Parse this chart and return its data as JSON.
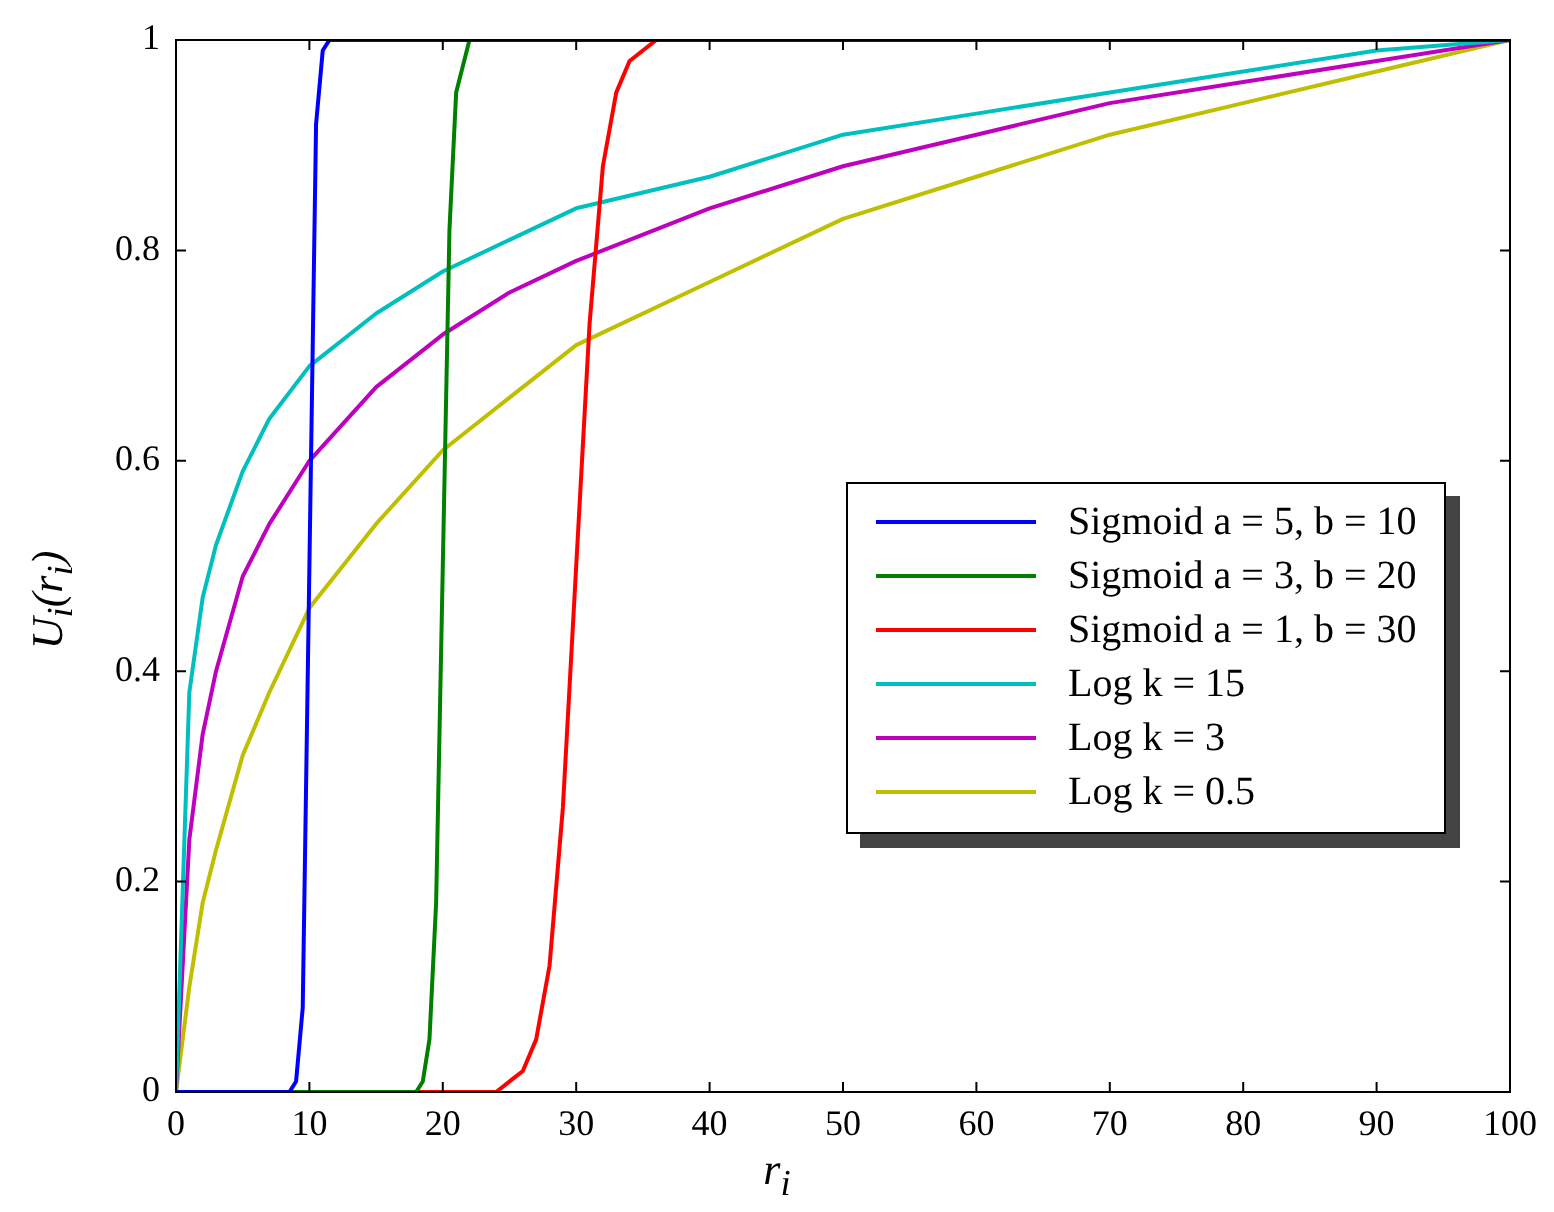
{
  "chart_data": {
    "type": "line",
    "xlabel": "r$_{i}$",
    "ylabel": "U$_{i}$(r$_{i}$)",
    "xlim": [
      0,
      100
    ],
    "ylim": [
      0,
      1
    ],
    "xticks": [
      0,
      10,
      20,
      30,
      40,
      50,
      60,
      70,
      80,
      90,
      100
    ],
    "yticks": [
      0,
      0.2,
      0.4,
      0.6,
      0.8,
      1
    ],
    "grid": false,
    "legend": "right",
    "marker": "none",
    "line_style": "solid",
    "series": [
      {
        "name": "Sigmoid a = 5, b = 10",
        "color": "#0000ff",
        "x": [
          0,
          8,
          8.5,
          9,
          9.5,
          10,
          10.5,
          11,
          11.5,
          12,
          100
        ],
        "values": [
          0,
          0,
          0,
          0.01,
          0.08,
          0.5,
          0.92,
          0.99,
          1,
          1,
          1
        ]
      },
      {
        "name": "Sigmoid a = 3, b = 20",
        "color": "#008000",
        "x": [
          0,
          17,
          18,
          18.5,
          19,
          19.5,
          20,
          20.5,
          21,
          22
        ],
        "values": [
          0,
          0,
          0,
          0.01,
          0.05,
          0.18,
          0.5,
          0.82,
          0.95,
          1
        ]
      },
      {
        "name": "Sigmoid a = 1, b = 30",
        "color": "#ff0000",
        "x": [
          0,
          24,
          26,
          27,
          28,
          29,
          30,
          31,
          32,
          33,
          34,
          36
        ],
        "values": [
          0,
          0,
          0.02,
          0.05,
          0.12,
          0.27,
          0.5,
          0.73,
          0.88,
          0.95,
          0.98,
          1
        ]
      },
      {
        "name": "Log k = 15",
        "color": "#00bfbf",
        "x": [
          0,
          1,
          2,
          3,
          5,
          7,
          10,
          15,
          20,
          25,
          30,
          40,
          50,
          60,
          70,
          80,
          90,
          100
        ],
        "values": [
          0,
          0.38,
          0.47,
          0.52,
          0.59,
          0.64,
          0.69,
          0.74,
          0.78,
          0.81,
          0.84,
          0.87,
          0.91,
          0.93,
          0.95,
          0.97,
          0.99,
          1
        ]
      },
      {
        "name": "Log k = 3",
        "color": "#bf00bf",
        "x": [
          0,
          1,
          2,
          3,
          5,
          7,
          10,
          15,
          20,
          25,
          30,
          40,
          50,
          60,
          70,
          80,
          90,
          100
        ],
        "values": [
          0,
          0.24,
          0.34,
          0.4,
          0.49,
          0.54,
          0.6,
          0.67,
          0.72,
          0.76,
          0.79,
          0.84,
          0.88,
          0.91,
          0.94,
          0.96,
          0.98,
          1
        ]
      },
      {
        "name": "Log k = 0.5",
        "color": "#bfbf00",
        "x": [
          0,
          1,
          2,
          3,
          5,
          7,
          10,
          15,
          20,
          25,
          30,
          40,
          50,
          60,
          70,
          80,
          90,
          100
        ],
        "values": [
          0,
          0.1,
          0.18,
          0.23,
          0.32,
          0.38,
          0.46,
          0.54,
          0.61,
          0.66,
          0.71,
          0.77,
          0.83,
          0.87,
          0.91,
          0.94,
          0.97,
          1
        ]
      }
    ]
  }
}
